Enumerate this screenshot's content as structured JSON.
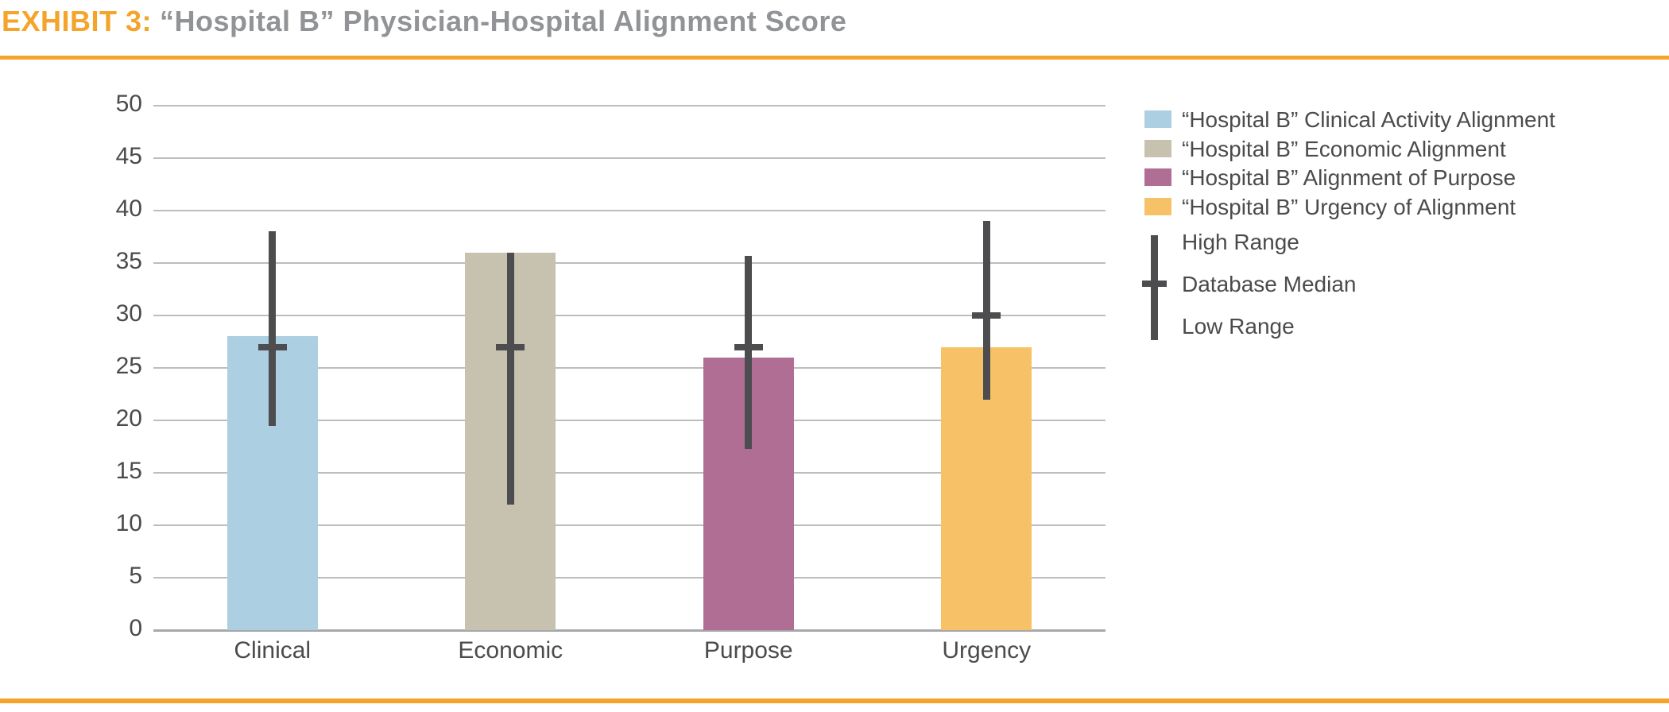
{
  "header": {
    "exhibit_label": "EXHIBIT 3:",
    "title": "“Hospital B” Physician-Hospital Alignment Score",
    "label_color": "#F5A42B",
    "title_color": "#919396",
    "rule_color": "#F5A42B"
  },
  "footer": {
    "rule_color": "#F5A42B"
  },
  "chart_data": {
    "type": "bar",
    "title": "“Hospital B” Physician-Hospital Alignment Score",
    "categories": [
      "Clinical",
      "Economic",
      "Purpose",
      "Urgency"
    ],
    "series": [
      {
        "legend": "“Hospital B” Clinical Activity Alignment",
        "category": "Clinical",
        "value": 28,
        "high_range": 38,
        "database_median": 27,
        "low_range": 19.5,
        "color": "#ACD0E2"
      },
      {
        "legend": "“Hospital B” Economic Alignment",
        "category": "Economic",
        "value": 36,
        "high_range": 36,
        "database_median": 27,
        "low_range": 12,
        "color": "#C7C1AF"
      },
      {
        "legend": "“Hospital B” Alignment of Purpose",
        "category": "Purpose",
        "value": 26,
        "high_range": 35.7,
        "database_median": 27,
        "low_range": 17.3,
        "color": "#B16E95"
      },
      {
        "legend": "“Hospital B” Urgency of Alignment",
        "category": "Urgency",
        "value": 27,
        "high_range": 39,
        "database_median": 30,
        "low_range": 22,
        "color": "#F7C167"
      }
    ],
    "error_bar_legend": [
      "High Range",
      "Database Median",
      "Low Range"
    ],
    "xlabel": "",
    "ylabel": "",
    "ylim": [
      0,
      50
    ],
    "yticks": [
      0,
      5,
      10,
      15,
      20,
      25,
      30,
      35,
      40,
      45,
      50
    ],
    "grid": true,
    "legend_position": "right",
    "error_bar_color": "#4D4D4F",
    "gridline_color": "#BDBDBD",
    "axis_line_color": "#A6A8AB",
    "tick_label_color": "#4B4B4D"
  }
}
